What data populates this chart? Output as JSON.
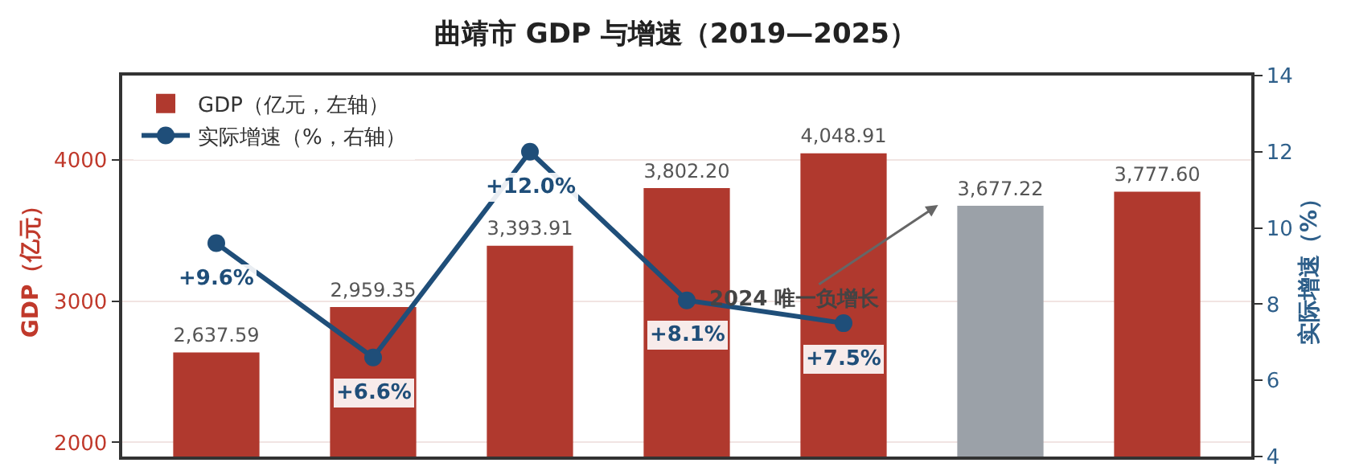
{
  "chart_data": {
    "type": "bar",
    "title": "曲靖市 GDP 与增速（2019—2025）",
    "ylabel": "GDP（亿元）",
    "y2label": "实际增速（%）",
    "categories": [
      null,
      null,
      null,
      null,
      null,
      null,
      null
    ],
    "series": [
      {
        "name": "GDP（亿元，左轴）",
        "colors": [
          "#b0392e",
          "#b0392e",
          "#b0392e",
          "#b0392e",
          "#b0392e",
          "#9ba1a8",
          "#b0392e"
        ],
        "values": [
          2637.59,
          2959.35,
          3393.91,
          3802.2,
          4048.91,
          3677.22,
          3777.6
        ],
        "value_labels": [
          "2,637.59",
          "2,959.35",
          "3,393.91",
          "3,802.20",
          "4,048.91",
          "3,677.22",
          "3,777.60"
        ]
      },
      {
        "name": "实际增速（%，右轴）",
        "type": "line",
        "axis": "y2",
        "color": "#1f4e79",
        "marker": "circle",
        "values": [
          9.6,
          6.6,
          12.0,
          8.1,
          7.5,
          null,
          null
        ],
        "value_labels": [
          "+9.6%",
          "+6.6%",
          "+12.0%",
          "+8.1%",
          "+7.5%",
          null,
          null
        ]
      }
    ],
    "ylim": [
      1900,
      4600
    ],
    "yticks": [
      2000,
      3000,
      4000
    ],
    "y2lim": [
      4,
      14
    ],
    "y2ticks": [
      4,
      6,
      8,
      10,
      12,
      14
    ],
    "grid": "y",
    "legend": "top left",
    "annotations": [
      "2024 唯一负增长"
    ]
  }
}
